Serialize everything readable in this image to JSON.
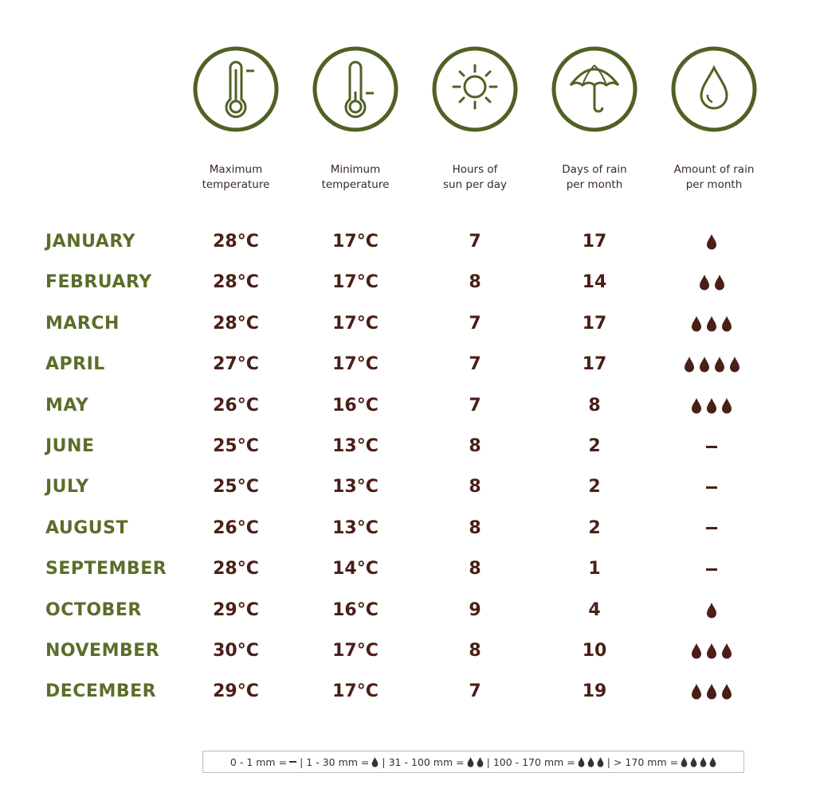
{
  "headers": [
    {
      "icon": "thermometer-high-icon",
      "label": "Maximum\ntemperature"
    },
    {
      "icon": "thermometer-low-icon",
      "label": "Minimum\ntemperature"
    },
    {
      "icon": "sun-icon",
      "label": "Hours of\nsun per day"
    },
    {
      "icon": "umbrella-icon",
      "label": "Days of rain\nper month"
    },
    {
      "icon": "raindrop-icon",
      "label": "Amount of rain\nper month"
    }
  ],
  "rows": [
    {
      "month": "JANUARY",
      "max": "28°C",
      "min": "17°C",
      "sun": "7",
      "rain_days": "17",
      "drops": 1
    },
    {
      "month": "FEBRUARY",
      "max": "28°C",
      "min": "17°C",
      "sun": "8",
      "rain_days": "14",
      "drops": 2
    },
    {
      "month": "MARCH",
      "max": "28°C",
      "min": "17°C",
      "sun": "7",
      "rain_days": "17",
      "drops": 3
    },
    {
      "month": "APRIL",
      "max": "27°C",
      "min": "17°C",
      "sun": "7",
      "rain_days": "17",
      "drops": 4
    },
    {
      "month": "MAY",
      "max": "26°C",
      "min": "16°C",
      "sun": "7",
      "rain_days": "8",
      "drops": 3
    },
    {
      "month": "JUNE",
      "max": "25°C",
      "min": "13°C",
      "sun": "8",
      "rain_days": "2",
      "drops": 0
    },
    {
      "month": "JULY",
      "max": "25°C",
      "min": "13°C",
      "sun": "8",
      "rain_days": "2",
      "drops": 0
    },
    {
      "month": "AUGUST",
      "max": "26°C",
      "min": "13°C",
      "sun": "8",
      "rain_days": "2",
      "drops": 0
    },
    {
      "month": "SEPTEMBER",
      "max": "28°C",
      "min": "14°C",
      "sun": "8",
      "rain_days": "1",
      "drops": 0
    },
    {
      "month": "OCTOBER",
      "max": "29°C",
      "min": "16°C",
      "sun": "9",
      "rain_days": "4",
      "drops": 1
    },
    {
      "month": "NOVEMBER",
      "max": "30°C",
      "min": "17°C",
      "sun": "8",
      "rain_days": "10",
      "drops": 3
    },
    {
      "month": "DECEMBER",
      "max": "29°C",
      "min": "17°C",
      "sun": "7",
      "rain_days": "19",
      "drops": 3
    }
  ],
  "legend": [
    {
      "range": "0 - 1 mm =",
      "drops": 0
    },
    {
      "range": "1 - 30 mm =",
      "drops": 1
    },
    {
      "range": "31 - 100 mm =",
      "drops": 2
    },
    {
      "range": "100 - 170 mm =",
      "drops": 3
    },
    {
      "range": "> 170 mm =",
      "drops": 4
    }
  ],
  "colors": {
    "green": "#5a6e2a",
    "brown": "#4a1f18",
    "icon_green": "#4f6224"
  }
}
